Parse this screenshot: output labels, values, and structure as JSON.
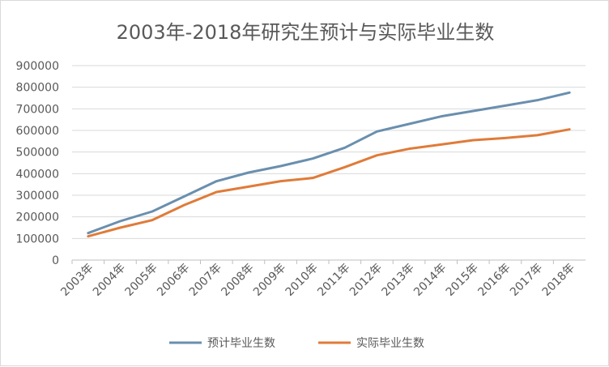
{
  "chart_data": {
    "type": "line",
    "title": "2003年-2018年研究生预计与实际毕业生数",
    "categories": [
      "2003年",
      "2004年",
      "2005年",
      "2006年",
      "2007年",
      "2008年",
      "2009年",
      "2010年",
      "2011年",
      "2012年",
      "2013年",
      "2014年",
      "2015年",
      "2016年",
      "2017年",
      "2018年"
    ],
    "series": [
      {
        "name": "预计毕业生数",
        "color": "#6a8fae",
        "values": [
          125000,
          180000,
          225000,
          295000,
          365000,
          405000,
          435000,
          470000,
          520000,
          595000,
          630000,
          665000,
          690000,
          715000,
          740000,
          775000
        ]
      },
      {
        "name": "实际毕业生数",
        "color": "#e07b39",
        "values": [
          110000,
          150000,
          185000,
          255000,
          315000,
          340000,
          365000,
          380000,
          430000,
          485000,
          515000,
          535000,
          555000,
          565000,
          578000,
          605000
        ]
      }
    ],
    "ylim": [
      0,
      900000
    ],
    "yticks": [
      "0",
      "100000",
      "200000",
      "300000",
      "400000",
      "500000",
      "600000",
      "700000",
      "800000",
      "900000"
    ],
    "grid": true,
    "legend_position": "bottom"
  }
}
